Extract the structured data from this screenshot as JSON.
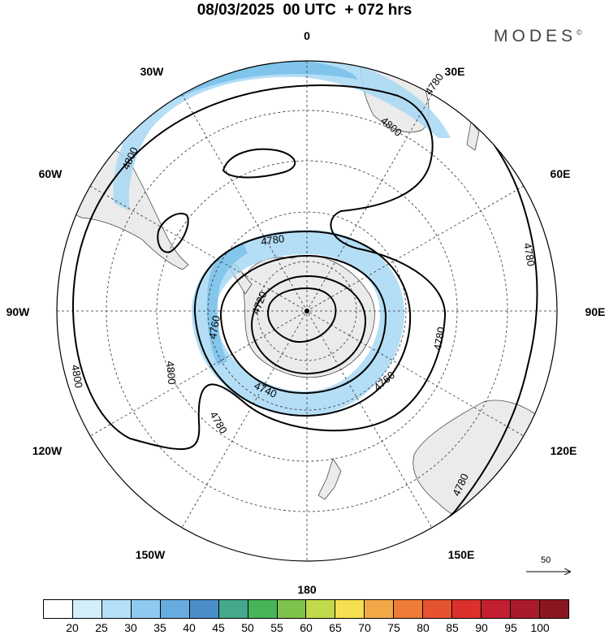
{
  "title": "08/03/2025  00 UTC  + 072 hrs",
  "brand": "MODES",
  "brand_mark": "©",
  "longitude_labels": {
    "0": "0",
    "30E": "30E",
    "60E": "60E",
    "90E": "90E",
    "120E": "120E",
    "150E": "150E",
    "180": "180",
    "150W": "150W",
    "120W": "120W",
    "90W": "90W",
    "60W": "60W",
    "30W": "30W"
  },
  "contour_labels": {
    "c4720": "4720",
    "c4740": "4740",
    "c4760": "4760",
    "c4760b": "4760",
    "c4780a": "4780",
    "c4780b": "4780",
    "c4780c": "4780",
    "c4780d": "4780",
    "c4780e": "4780",
    "c4780f": "4780",
    "c4800a": "4800",
    "c4800b": "4800",
    "c4800c": "4800",
    "c4800d": "4800"
  },
  "reference_vector": {
    "label": "50"
  },
  "colorbar": {
    "colors": [
      "#ffffff",
      "#d4effc",
      "#b4e0f8",
      "#8ec9ef",
      "#66acdf",
      "#4a8ec9",
      "#45a78c",
      "#48b45a",
      "#7cc24b",
      "#c2d94b",
      "#f6df50",
      "#f3a848",
      "#ee7b36",
      "#e55330",
      "#db302c",
      "#c21f31",
      "#a91b2c",
      "#8b1622"
    ],
    "ticks": [
      "20",
      "25",
      "30",
      "35",
      "40",
      "45",
      "50",
      "55",
      "60",
      "65",
      "70",
      "75",
      "80",
      "85",
      "90",
      "95",
      "100"
    ]
  },
  "colors": {
    "land": "#ebebeb",
    "wind_light": "#a7d8f4",
    "wind_mid": "#74bde8",
    "contour": "#000000"
  }
}
